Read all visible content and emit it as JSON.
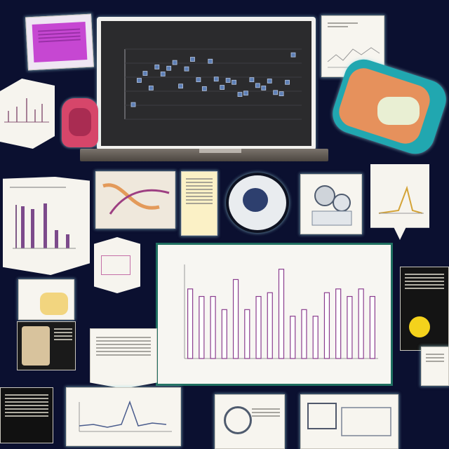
{
  "colors": {
    "background": "#0b1030",
    "monitor_screen": "#2b2b2d",
    "bar_stroke": "#8a3d8e",
    "bar_frame": "#1f6f60",
    "magenta_card": "#c33fd0",
    "pink_cup": "#d6466a",
    "teal_frame": "#21a7b0",
    "orange_shape": "#e6915c",
    "yellow_circle": "#f4d21c"
  },
  "monitor": {},
  "main_chart": {},
  "chart_data": [
    {
      "type": "scatter",
      "x": [
        1,
        2,
        3,
        4,
        5,
        6,
        7,
        8,
        9,
        10,
        11,
        12,
        13,
        14,
        15,
        16,
        17,
        18,
        19,
        20,
        21,
        22,
        23,
        24,
        25,
        26,
        27,
        28
      ],
      "y": [
        2.3,
        6.1,
        7.2,
        4.9,
        8.2,
        7.1,
        8.0,
        8.9,
        5.2,
        7.9,
        9.4,
        6.2,
        4.8,
        9.1,
        6.3,
        5.0,
        6.1,
        5.8,
        3.9,
        4.1,
        6.2,
        5.3,
        4.9,
        6.0,
        4.2,
        4.0,
        5.8,
        10.1
      ]
    },
    {
      "type": "bar",
      "categories": [
        "1",
        "2",
        "3",
        "4",
        "5",
        "6",
        "7",
        "8",
        "9",
        "10",
        "11",
        "12",
        "13",
        "14",
        "15",
        "16",
        "17"
      ],
      "values": [
        74,
        66,
        66,
        52,
        84,
        52,
        66,
        70,
        95,
        45,
        52,
        45,
        70,
        74,
        66,
        74,
        66
      ]
    }
  ],
  "icons": [
    "scatter-plot-monitor",
    "bar-chart-card",
    "line-chart-card",
    "magnifier-icon",
    "pink-cup",
    "yellow-circle"
  ]
}
